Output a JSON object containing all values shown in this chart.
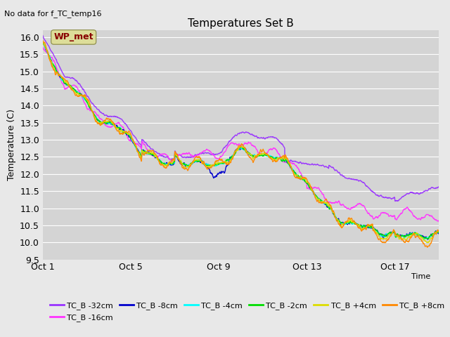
{
  "title": "Temperatures Set B",
  "subtitle": "No data for f_TC_temp16",
  "ylabel": "Temperature (C)",
  "xlabel": "Time",
  "ylim": [
    9.5,
    16.2
  ],
  "fig_bg_color": "#e8e8e8",
  "plot_bg_color": "#d4d4d4",
  "series": [
    {
      "label": "TC_B -32cm",
      "color": "#9933ff"
    },
    {
      "label": "TC_B -16cm",
      "color": "#ff33ff"
    },
    {
      "label": "TC_B -8cm",
      "color": "#0000cc"
    },
    {
      "label": "TC_B -4cm",
      "color": "#00ffff"
    },
    {
      "label": "TC_B -2cm",
      "color": "#00dd00"
    },
    {
      "label": "TC_B +4cm",
      "color": "#dddd00"
    },
    {
      "label": "TC_B +8cm",
      "color": "#ff8800"
    }
  ],
  "wp_met_box_color": "#dddd99",
  "wp_met_text_color": "#880000",
  "xtick_labels": [
    "Oct 1",
    "Oct 5",
    "Oct 9",
    "Oct 13",
    "Oct 17"
  ],
  "xtick_positions": [
    0,
    4,
    8,
    12,
    16
  ],
  "num_days": 19,
  "points_per_day": 96
}
